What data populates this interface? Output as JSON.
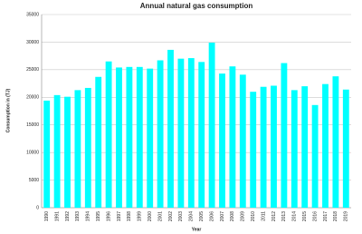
{
  "chart_data": {
    "type": "bar",
    "title": "Annual natural gas consumption",
    "x_label": "Year",
    "y_label": "Consumption in (TJ)",
    "categories": [
      "1990",
      "1991",
      "1992",
      "1993",
      "1994",
      "1995",
      "1996",
      "1997",
      "1998",
      "1999",
      "2000",
      "2001",
      "2002",
      "2003",
      "2004",
      "2005",
      "2006",
      "2007",
      "2008",
      "2009",
      "2010",
      "2011",
      "2012",
      "2013",
      "2014",
      "2015",
      "2016",
      "2017",
      "2018",
      "2019"
    ],
    "values": [
      19400,
      20400,
      20100,
      21300,
      21700,
      23700,
      26500,
      25400,
      25500,
      25500,
      25200,
      26700,
      28600,
      27000,
      27100,
      26400,
      29900,
      24300,
      25600,
      24100,
      21000,
      21900,
      22100,
      26200,
      21300,
      22000,
      18600,
      22400,
      23800,
      21400
    ],
    "color": "#00ffff",
    "ylim": [
      0,
      35000
    ],
    "yticks": [
      0,
      5000,
      10000,
      15000,
      20000,
      25000,
      30000,
      35000
    ],
    "grid": true
  }
}
